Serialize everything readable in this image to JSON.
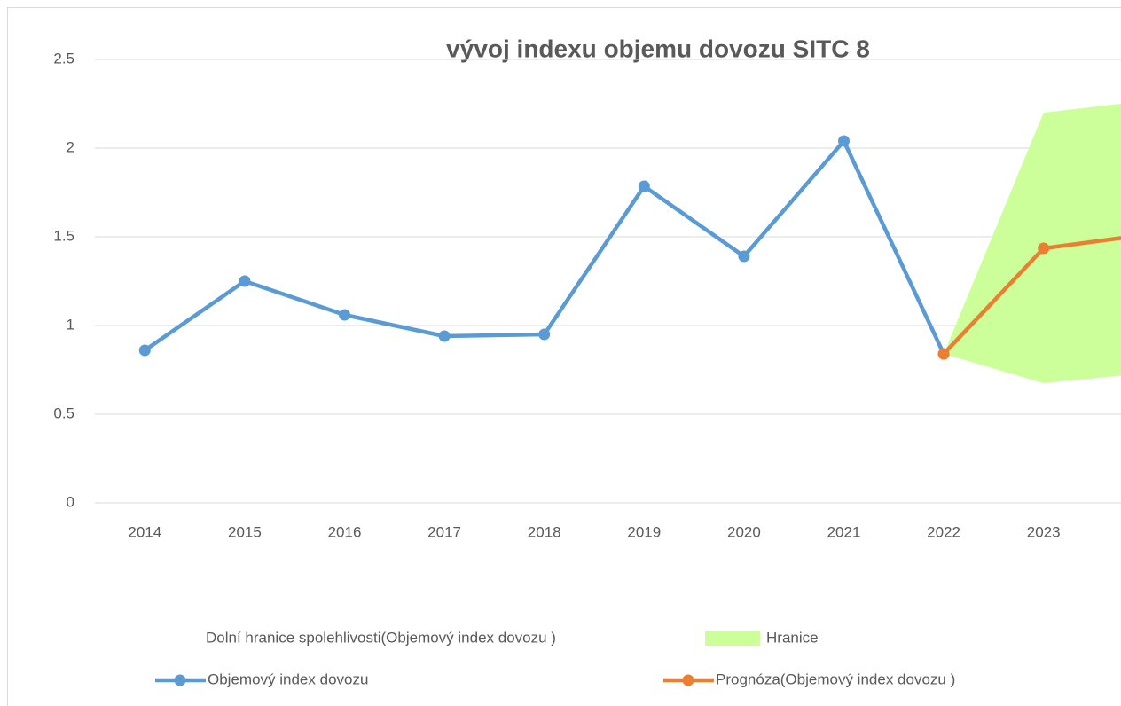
{
  "chart_data": {
    "type": "line",
    "title": "vývoj indexu objemu dovozu SITC 8",
    "categories": [
      "2014",
      "2015",
      "2016",
      "2017",
      "2018",
      "2019",
      "2020",
      "2021",
      "2022",
      "2023",
      null
    ],
    "series": [
      {
        "name": "Dolní hranice spolehlivosti(Objemový index dovozu )",
        "color": "none",
        "kind": "area",
        "values": [
          null,
          null,
          null,
          null,
          null,
          null,
          null,
          null,
          0.84,
          0.675,
          0.73
        ]
      },
      {
        "name": "Hranice",
        "color": "#ccff99",
        "kind": "area",
        "stacked_on": 0,
        "values": [
          null,
          null,
          null,
          null,
          null,
          null,
          null,
          null,
          0,
          1.525,
          1.535
        ]
      },
      {
        "name": "Objemový index dovozu",
        "color": "#5b9bd5",
        "kind": "line",
        "values": [
          0.86,
          1.25,
          1.06,
          0.94,
          0.95,
          1.785,
          1.39,
          2.04,
          0.84,
          null,
          null
        ]
      },
      {
        "name": "Prognóza(Objemový index dovozu )",
        "color": "#ed7d31",
        "kind": "line",
        "values": [
          null,
          null,
          null,
          null,
          null,
          null,
          null,
          null,
          0.84,
          1.435,
          1.51
        ]
      }
    ],
    "ylim": [
      0,
      2.5
    ],
    "yticks": [
      0,
      0.5,
      1,
      1.5,
      2,
      2.5
    ],
    "grid": true
  }
}
